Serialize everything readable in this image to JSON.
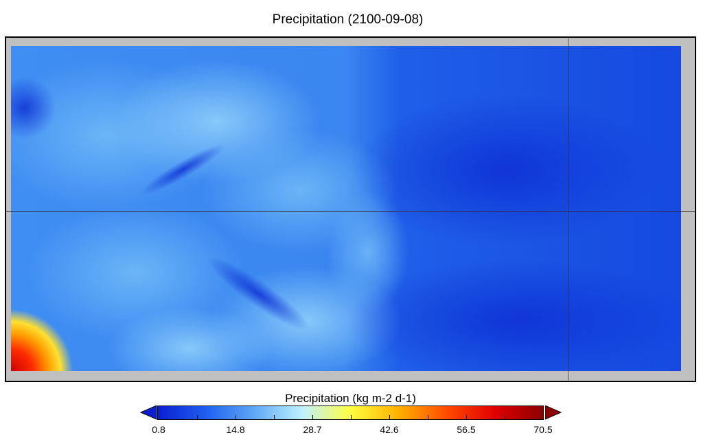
{
  "map": {
    "title": "Precipitation (2100-09-08)",
    "field_variable": "Precipitation",
    "units": "kg m-2 d-1",
    "frame_color": "#c0c0c0",
    "dominant_color": "#1450e6"
  },
  "colorbar": {
    "title": "Precipitation (kg m-2 d-1)",
    "min": 0.8,
    "max": 70.5,
    "tick_labels": [
      "0.8",
      "14.8",
      "28.7",
      "42.6",
      "56.5",
      "70.5"
    ],
    "colors": [
      "#0a1fd2",
      "#1f5fef",
      "#5fa8f5",
      "#bff2ff",
      "#ffff40",
      "#ffb000",
      "#ff4a00",
      "#e00000",
      "#8c0000"
    ],
    "extend": "both"
  }
}
